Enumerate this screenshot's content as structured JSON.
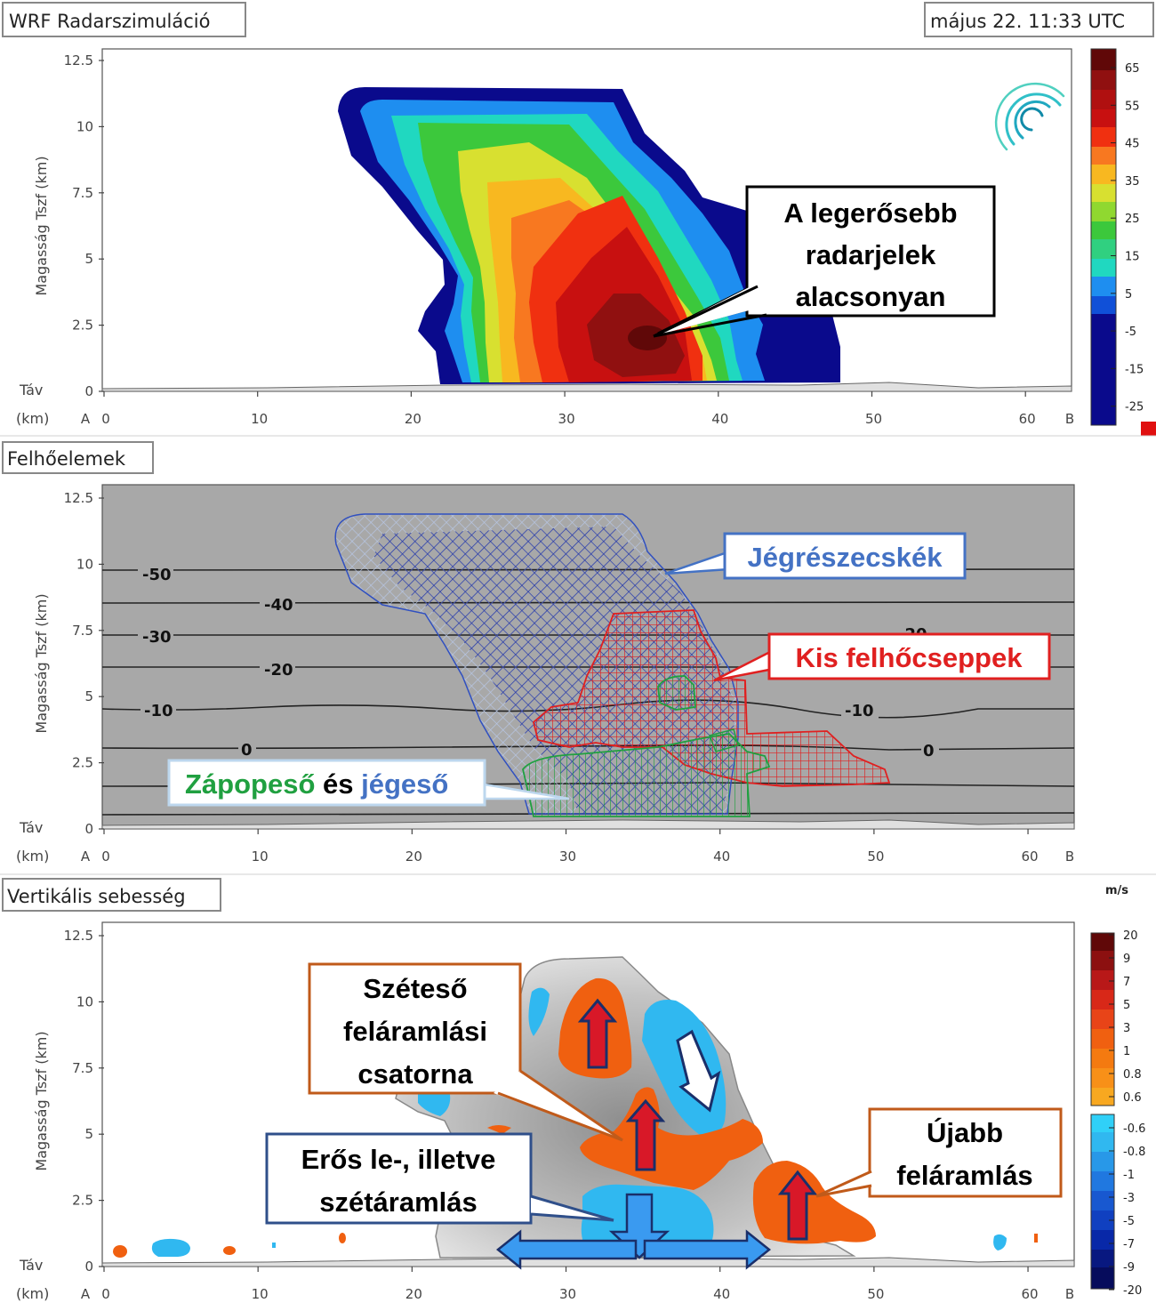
{
  "header": {
    "title": "WRF Radarszimuláció",
    "timestamp": "május 22. 11:33 UTC"
  },
  "axes": {
    "ylabel": "Magasság Tszf (km)",
    "xlabel_top": "Táv",
    "xlabel_bottom": "(km)",
    "start_label": "A",
    "end_label": "B",
    "x_ticks": [
      "0",
      "10",
      "20",
      "30",
      "40",
      "50",
      "60"
    ],
    "y_ticks": [
      "0",
      "2.5",
      "5",
      "7.5",
      "10",
      "12.5"
    ]
  },
  "panels": {
    "radar": {
      "annotation": [
        "A legerősebb",
        "radarjelek",
        "alacsonyan"
      ],
      "colorbar_ticks": [
        "65",
        "55",
        "45",
        "35",
        "25",
        "15",
        "5",
        "-5",
        "-15",
        "-25"
      ],
      "colors": {
        "dbz_m25": "#0a0a8c",
        "dbz_5": "#1e8ef0",
        "dbz_15": "#20d8c0",
        "dbz_25": "#3cc83c",
        "dbz_35": "#d8e030",
        "dbz_40": "#f8b820",
        "dbz_45": "#f87820",
        "dbz_50": "#f03010",
        "dbz_55": "#c81010",
        "dbz_60": "#901010",
        "dbz_65": "#600808"
      }
    },
    "hydrometeors": {
      "title": "Felhőelemek",
      "ice_label": "Jégrészecskék",
      "cloud_droplets_label": "Kis felhőcseppek",
      "rain_word": "Zápореső",
      "and_word": "és",
      "hail_word": "jégeső",
      "temperature_labels": [
        "-50",
        "-40",
        "-30",
        "-20",
        "-10",
        "0",
        "-10",
        "0",
        "-20"
      ],
      "colors": {
        "ice": "#2a3aa0",
        "droplets": "#e02020",
        "rain": "#20a040",
        "background": "#a8a8a8"
      }
    },
    "vertical_velocity": {
      "title": "Vertikális sebesség",
      "units": "m/s",
      "colorbar_ticks": [
        "20",
        "9",
        "7",
        "5",
        "3",
        "1",
        "0.8",
        "0.6",
        "-0.6",
        "-0.8",
        "-1",
        "-3",
        "-5",
        "-7",
        "-9",
        "-20"
      ],
      "annotation_decaying": [
        "Széteső",
        "feláramlási",
        "csatorna"
      ],
      "annotation_downdraft": [
        "Erős le-, illetve",
        "szétáramlás"
      ],
      "annotation_new_updraft": [
        "Újabb",
        "feláramlás"
      ],
      "colors": {
        "updraft": "#f06010",
        "downdraft": "#30b8f0",
        "arrow_up": "#d81828",
        "arrow_down": "#3a9af0"
      }
    }
  },
  "chart_data": [
    {
      "type": "heatmap",
      "title": "WRF Radarszimuláció",
      "ylabel": "Magasság Tszf (km)",
      "xlim": [
        0,
        63
      ],
      "ylim": [
        0,
        12.5
      ],
      "colorbar_range": [
        -25,
        65
      ],
      "max_reflectivity_location": {
        "x": 35.5,
        "y": 2.0
      },
      "echo_top_km": 11.4,
      "grid": false
    },
    {
      "type": "heatmap",
      "title": "Felhőelemek",
      "xlim": [
        0,
        63
      ],
      "ylim": [
        0,
        12.5
      ],
      "series": [
        {
          "name": "Jégrészecskék",
          "x_range": [
            15,
            40
          ],
          "y_range": [
            0.5,
            11.3
          ]
        },
        {
          "name": "Kis felhőcseppek",
          "x_range": [
            28,
            51
          ],
          "y_range": [
            1.5,
            8.5
          ]
        },
        {
          "name": "Zápореső és jégeső",
          "x_range": [
            27,
            43
          ],
          "y_range": [
            0,
            5.8
          ]
        }
      ],
      "isotherms_C": [
        {
          "label": "-50",
          "y": 9.7
        },
        {
          "label": "-40",
          "y": 8.5
        },
        {
          "label": "-30",
          "y": 7.2
        },
        {
          "label": "-20",
          "y": 6.0
        },
        {
          "label": "-10",
          "y": 4.6
        },
        {
          "label": "0",
          "y": 3.1
        }
      ]
    },
    {
      "type": "heatmap",
      "title": "Vertikális sebesség",
      "xlim": [
        0,
        63
      ],
      "ylim": [
        0,
        12.5
      ],
      "units": "m/s",
      "colorbar_range": [
        -20,
        20
      ],
      "updraft_cores": [
        {
          "x": 32.5,
          "y": 9
        },
        {
          "x": 35,
          "y": 4.7
        },
        {
          "x": 45,
          "y": 2.5
        }
      ],
      "downdraft_cores": [
        {
          "x": 39,
          "y": 8
        },
        {
          "x": 35,
          "y": 1.3
        }
      ]
    }
  ]
}
